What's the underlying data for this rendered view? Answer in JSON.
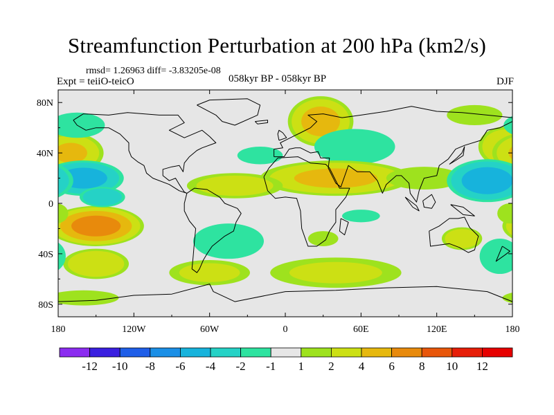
{
  "chart_data": {
    "type": "heatmap",
    "title": "Streamfunction Perturbation at 200 hPa (km2/s)",
    "subtitle_stats": "rmsd= 1.26963 diff= -3.83205e-08",
    "experiment": "Expt = teiiO-teicO",
    "period": "058kyr BP - 058kyr BP",
    "season": "DJF",
    "xlim": [
      -180,
      180
    ],
    "ylim": [
      -90,
      90
    ],
    "x_ticks": [
      {
        "value": -180,
        "label": "180"
      },
      {
        "value": -120,
        "label": "120W"
      },
      {
        "value": -60,
        "label": "60W"
      },
      {
        "value": 0,
        "label": "0"
      },
      {
        "value": 60,
        "label": "60E"
      },
      {
        "value": 120,
        "label": "120E"
      },
      {
        "value": 180,
        "label": "180"
      }
    ],
    "y_ticks": [
      {
        "value": 80,
        "label": "80N"
      },
      {
        "value": 40,
        "label": "40N"
      },
      {
        "value": 0,
        "label": "0"
      },
      {
        "value": -40,
        "label": "40S"
      },
      {
        "value": -80,
        "label": "80S"
      }
    ],
    "levels": [
      -12,
      -10,
      -8,
      -6,
      -4,
      -2,
      -1,
      1,
      2,
      4,
      6,
      8,
      10,
      12
    ],
    "level_labels": [
      "-12",
      "-10",
      "-8",
      "-6",
      "-4",
      "-2",
      "-1",
      "1",
      "2",
      "4",
      "6",
      "8",
      "10",
      "12"
    ],
    "colors": [
      "#8b2cf0",
      "#3a1fe0",
      "#1f5ee8",
      "#1b8fe6",
      "#17b3dc",
      "#25d2c6",
      "#2ee3a0",
      "#e6e6e6",
      "#9ee21e",
      "#cce014",
      "#e6b80e",
      "#e88a0c",
      "#e8560a",
      "#e61e08",
      "#e60000"
    ],
    "anomalies": [
      {
        "lon": 28,
        "lat": 65,
        "value": 4.6,
        "rlon": 26,
        "rlat": 20
      },
      {
        "lon": 150,
        "lat": 70,
        "value": 1.6,
        "rlon": 22,
        "rlat": 8
      },
      {
        "lon": 55,
        "lat": 45,
        "value": -1.6,
        "rlon": 32,
        "rlat": 14
      },
      {
        "lon": -20,
        "lat": 38,
        "value": -1.3,
        "rlon": 18,
        "rlat": 7
      },
      {
        "lon": 40,
        "lat": 20,
        "value": 4.3,
        "rlon": 60,
        "rlat": 14
      },
      {
        "lon": -40,
        "lat": 14,
        "value": 2.8,
        "rlon": 38,
        "rlat": 10
      },
      {
        "lon": 110,
        "lat": 20,
        "value": 1.8,
        "rlon": 30,
        "rlat": 9
      },
      {
        "lon": 175,
        "lat": 45,
        "value": 3.8,
        "rlon": 22,
        "rlat": 16
      },
      {
        "lon": -170,
        "lat": 40,
        "value": 4.0,
        "rlon": 26,
        "rlat": 16
      },
      {
        "lon": -160,
        "lat": 20,
        "value": -4.6,
        "rlon": 32,
        "rlat": 14
      },
      {
        "lon": 160,
        "lat": 18,
        "value": -5.0,
        "rlon": 32,
        "rlat": 17
      },
      {
        "lon": -165,
        "lat": 62,
        "value": -1.8,
        "rlon": 22,
        "rlat": 10
      },
      {
        "lon": -150,
        "lat": -18,
        "value": 6.8,
        "rlon": 38,
        "rlat": 16
      },
      {
        "lon": -145,
        "lat": 5,
        "value": -3.8,
        "rlon": 18,
        "rlat": 8
      },
      {
        "lon": -150,
        "lat": -48,
        "value": 3.8,
        "rlon": 26,
        "rlat": 12
      },
      {
        "lon": -60,
        "lat": -55,
        "value": 2.3,
        "rlon": 32,
        "rlat": 10
      },
      {
        "lon": -45,
        "lat": -30,
        "value": -1.6,
        "rlon": 28,
        "rlat": 14
      },
      {
        "lon": -160,
        "lat": -75,
        "value": 1.7,
        "rlon": 28,
        "rlat": 6
      },
      {
        "lon": 30,
        "lat": -28,
        "value": 1.6,
        "rlon": 12,
        "rlat": 6
      },
      {
        "lon": 60,
        "lat": -10,
        "value": -1.3,
        "rlon": 15,
        "rlat": 5
      },
      {
        "lon": 40,
        "lat": -55,
        "value": 2.0,
        "rlon": 52,
        "rlat": 12
      },
      {
        "lon": 140,
        "lat": -28,
        "value": 3.6,
        "rlon": 16,
        "rlat": 9
      },
      {
        "lon": 170,
        "lat": -42,
        "value": -1.6,
        "rlon": 16,
        "rlat": 14
      },
      {
        "lon": 178,
        "lat": -8,
        "value": 1.4,
        "rlon": 10,
        "rlat": 8
      }
    ],
    "continents": [
      {
        "name": "North America",
        "points": [
          [
            -168,
            66
          ],
          [
            -160,
            71
          ],
          [
            -140,
            70
          ],
          [
            -125,
            72
          ],
          [
            -100,
            70
          ],
          [
            -85,
            70
          ],
          [
            -80,
            64
          ],
          [
            -92,
            58
          ],
          [
            -80,
            52
          ],
          [
            -66,
            58
          ],
          [
            -60,
            53
          ],
          [
            -55,
            48
          ],
          [
            -66,
            44
          ],
          [
            -70,
            42
          ],
          [
            -76,
            37
          ],
          [
            -80,
            32
          ],
          [
            -81,
            25
          ],
          [
            -84,
            30
          ],
          [
            -90,
            29
          ],
          [
            -97,
            27
          ],
          [
            -97,
            22
          ],
          [
            -92,
            18
          ],
          [
            -87,
            20
          ],
          [
            -84,
            15
          ],
          [
            -80,
            9
          ],
          [
            -78,
            8
          ],
          [
            -84,
            10
          ],
          [
            -92,
            15
          ],
          [
            -105,
            20
          ],
          [
            -110,
            24
          ],
          [
            -112,
            30
          ],
          [
            -117,
            33
          ],
          [
            -122,
            37
          ],
          [
            -124,
            42
          ],
          [
            -124,
            48
          ],
          [
            -131,
            55
          ],
          [
            -140,
            60
          ],
          [
            -150,
            60
          ],
          [
            -158,
            58
          ],
          [
            -165,
            62
          ],
          [
            -168,
            66
          ]
        ]
      },
      {
        "name": "Greenland",
        "points": [
          [
            -70,
            78
          ],
          [
            -60,
            82
          ],
          [
            -30,
            83
          ],
          [
            -20,
            78
          ],
          [
            -22,
            70
          ],
          [
            -40,
            62
          ],
          [
            -50,
            65
          ],
          [
            -55,
            70
          ],
          [
            -70,
            78
          ]
        ]
      },
      {
        "name": "South America",
        "points": [
          [
            -78,
            8
          ],
          [
            -72,
            12
          ],
          [
            -62,
            11
          ],
          [
            -52,
            5
          ],
          [
            -48,
            0
          ],
          [
            -38,
            -4
          ],
          [
            -35,
            -8
          ],
          [
            -39,
            -15
          ],
          [
            -41,
            -22
          ],
          [
            -48,
            -26
          ],
          [
            -58,
            -34
          ],
          [
            -62,
            -40
          ],
          [
            -65,
            -45
          ],
          [
            -68,
            -52
          ],
          [
            -70,
            -55
          ],
          [
            -74,
            -52
          ],
          [
            -73,
            -42
          ],
          [
            -72,
            -30
          ],
          [
            -71,
            -20
          ],
          [
            -76,
            -14
          ],
          [
            -80,
            -6
          ],
          [
            -80,
            0
          ],
          [
            -78,
            8
          ]
        ]
      },
      {
        "name": "Africa",
        "points": [
          [
            -17,
            21
          ],
          [
            -13,
            28
          ],
          [
            -6,
            36
          ],
          [
            10,
            37
          ],
          [
            20,
            32
          ],
          [
            32,
            31
          ],
          [
            35,
            28
          ],
          [
            43,
            12
          ],
          [
            51,
            12
          ],
          [
            48,
            5
          ],
          [
            40,
            -5
          ],
          [
            40,
            -15
          ],
          [
            35,
            -22
          ],
          [
            32,
            -29
          ],
          [
            25,
            -34
          ],
          [
            18,
            -34
          ],
          [
            13,
            -20
          ],
          [
            12,
            -6
          ],
          [
            9,
            4
          ],
          [
            0,
            5
          ],
          [
            -8,
            4
          ],
          [
            -14,
            10
          ],
          [
            -17,
            21
          ]
        ]
      },
      {
        "name": "Eurasia",
        "points": [
          [
            -9,
            37
          ],
          [
            -9,
            43
          ],
          [
            -2,
            44
          ],
          [
            -4,
            48
          ],
          [
            2,
            51
          ],
          [
            8,
            54
          ],
          [
            12,
            56
          ],
          [
            20,
            60
          ],
          [
            25,
            65
          ],
          [
            18,
            70
          ],
          [
            30,
            71
          ],
          [
            45,
            68
          ],
          [
            60,
            70
          ],
          [
            80,
            73
          ],
          [
            100,
            77
          ],
          [
            120,
            73
          ],
          [
            140,
            72
          ],
          [
            160,
            70
          ],
          [
            180,
            68
          ],
          [
            180,
            65
          ],
          [
            170,
            60
          ],
          [
            160,
            58
          ],
          [
            155,
            50
          ],
          [
            142,
            46
          ],
          [
            135,
            43
          ],
          [
            129,
            35
          ],
          [
            122,
            30
          ],
          [
            120,
            22
          ],
          [
            110,
            20
          ],
          [
            106,
            10
          ],
          [
            104,
            1
          ],
          [
            99,
            8
          ],
          [
            98,
            16
          ],
          [
            92,
            22
          ],
          [
            88,
            22
          ],
          [
            80,
            15
          ],
          [
            77,
            8
          ],
          [
            73,
            18
          ],
          [
            67,
            25
          ],
          [
            57,
            25
          ],
          [
            50,
            30
          ],
          [
            44,
            13
          ],
          [
            40,
            16
          ],
          [
            34,
            28
          ],
          [
            35,
            36
          ],
          [
            28,
            36
          ],
          [
            26,
            41
          ],
          [
            20,
            40
          ],
          [
            12,
            44
          ],
          [
            8,
            44
          ],
          [
            3,
            43
          ],
          [
            -1,
            37
          ],
          [
            -9,
            37
          ]
        ]
      },
      {
        "name": "Australia",
        "points": [
          [
            114,
            -22
          ],
          [
            122,
            -18
          ],
          [
            130,
            -12
          ],
          [
            137,
            -12
          ],
          [
            142,
            -11
          ],
          [
            146,
            -19
          ],
          [
            153,
            -26
          ],
          [
            150,
            -37
          ],
          [
            145,
            -39
          ],
          [
            138,
            -35
          ],
          [
            130,
            -32
          ],
          [
            115,
            -34
          ],
          [
            114,
            -22
          ]
        ]
      },
      {
        "name": "Antarctica",
        "points": [
          [
            -180,
            -78
          ],
          [
            -150,
            -77
          ],
          [
            -120,
            -73
          ],
          [
            -90,
            -72
          ],
          [
            -60,
            -64
          ],
          [
            -57,
            -70
          ],
          [
            -40,
            -78
          ],
          [
            0,
            -70
          ],
          [
            40,
            -69
          ],
          [
            80,
            -67
          ],
          [
            120,
            -66
          ],
          [
            160,
            -70
          ],
          [
            180,
            -78
          ]
        ]
      },
      {
        "name": "UK",
        "points": [
          [
            -5,
            50
          ],
          [
            1,
            52
          ],
          [
            -2,
            56
          ],
          [
            -5,
            58
          ],
          [
            -6,
            55
          ],
          [
            -5,
            50
          ]
        ]
      },
      {
        "name": "Madagascar",
        "points": [
          [
            44,
            -12
          ],
          [
            50,
            -15
          ],
          [
            47,
            -25
          ],
          [
            43,
            -22
          ],
          [
            44,
            -12
          ]
        ]
      },
      {
        "name": "Japan",
        "points": [
          [
            130,
            31
          ],
          [
            135,
            34
          ],
          [
            141,
            38
          ],
          [
            142,
            45
          ],
          [
            140,
            40
          ],
          [
            136,
            36
          ],
          [
            130,
            31
          ]
        ]
      },
      {
        "name": "New Zealand",
        "points": [
          [
            172,
            -34
          ],
          [
            178,
            -38
          ],
          [
            174,
            -41
          ],
          [
            167,
            -46
          ],
          [
            172,
            -34
          ]
        ]
      },
      {
        "name": "Borneo",
        "points": [
          [
            109,
            2
          ],
          [
            116,
            7
          ],
          [
            119,
            1
          ],
          [
            116,
            -4
          ],
          [
            110,
            -3
          ],
          [
            109,
            2
          ]
        ]
      },
      {
        "name": "Sumatra",
        "points": [
          [
            95,
            5
          ],
          [
            104,
            -2
          ],
          [
            106,
            -6
          ],
          [
            101,
            -3
          ],
          [
            95,
            5
          ]
        ]
      },
      {
        "name": "New Guinea",
        "points": [
          [
            131,
            -1
          ],
          [
            141,
            -3
          ],
          [
            150,
            -10
          ],
          [
            141,
            -9
          ],
          [
            131,
            -1
          ]
        ]
      },
      {
        "name": "Iceland",
        "points": [
          [
            -24,
            65
          ],
          [
            -14,
            66
          ],
          [
            -14,
            64
          ],
          [
            -22,
            63
          ],
          [
            -24,
            65
          ]
        ]
      }
    ]
  }
}
